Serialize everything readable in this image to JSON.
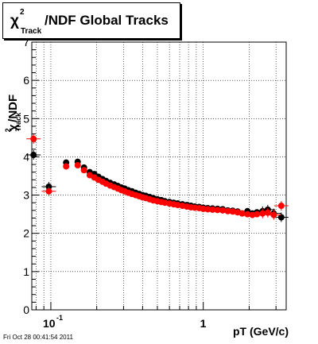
{
  "title": {
    "symbol": "χ",
    "superscript": "2",
    "subscript": "Track",
    "text": "/NDF  Global Tracks"
  },
  "footer": "Fri Oct 28 00:41:54 2011",
  "chart_data": {
    "type": "scatter",
    "title": "χ²Track/NDF  Global Tracks",
    "xlabel": "pT (GeV/c)",
    "ylabel": {
      "symbol": "χ",
      "superscript": "2",
      "subscript": "Track",
      "text": "/NDF"
    },
    "xscale": "log",
    "xlim": [
      0.075,
      3.5
    ],
    "ylim": [
      0,
      7
    ],
    "grid": true,
    "y_ticks": [
      "0",
      "1",
      "2",
      "3",
      "4",
      "5",
      "6",
      "7"
    ],
    "x_ticks": [
      {
        "value": 0.1,
        "base": "10",
        "exp": "-1"
      },
      {
        "value": 1,
        "base": "1",
        "exp": ""
      }
    ],
    "series": [
      {
        "color": "#000000",
        "points": [
          [
            0.077,
            4.05
          ],
          [
            0.097,
            3.22
          ],
          [
            0.126,
            3.85
          ],
          [
            0.15,
            3.87
          ],
          [
            0.165,
            3.72
          ],
          [
            0.18,
            3.6
          ],
          [
            0.193,
            3.55
          ],
          [
            0.205,
            3.48
          ],
          [
            0.218,
            3.42
          ],
          [
            0.23,
            3.37
          ],
          [
            0.245,
            3.32
          ],
          [
            0.26,
            3.28
          ],
          [
            0.275,
            3.24
          ],
          [
            0.29,
            3.2
          ],
          [
            0.305,
            3.17
          ],
          [
            0.322,
            3.13
          ],
          [
            0.34,
            3.1
          ],
          [
            0.36,
            3.06
          ],
          [
            0.38,
            3.03
          ],
          [
            0.4,
            3.0
          ],
          [
            0.42,
            2.98
          ],
          [
            0.445,
            2.95
          ],
          [
            0.47,
            2.92
          ],
          [
            0.5,
            2.89
          ],
          [
            0.53,
            2.87
          ],
          [
            0.56,
            2.84
          ],
          [
            0.6,
            2.82
          ],
          [
            0.64,
            2.8
          ],
          [
            0.68,
            2.78
          ],
          [
            0.73,
            2.76
          ],
          [
            0.78,
            2.74
          ],
          [
            0.83,
            2.72
          ],
          [
            0.88,
            2.7
          ],
          [
            0.94,
            2.69
          ],
          [
            1.0,
            2.67
          ],
          [
            1.07,
            2.66
          ],
          [
            1.15,
            2.65
          ],
          [
            1.24,
            2.64
          ],
          [
            1.34,
            2.63
          ],
          [
            1.45,
            2.6
          ],
          [
            1.56,
            2.59
          ],
          [
            1.68,
            2.57
          ],
          [
            1.8,
            2.52
          ],
          [
            1.95,
            2.58
          ],
          [
            2.1,
            2.52
          ],
          [
            2.25,
            2.55
          ],
          [
            2.45,
            2.58
          ],
          [
            2.65,
            2.62
          ],
          [
            2.9,
            2.52
          ],
          [
            3.25,
            2.42
          ]
        ]
      },
      {
        "color": "#ff0000",
        "points": [
          [
            0.077,
            4.47
          ],
          [
            0.097,
            3.1
          ],
          [
            0.126,
            3.75
          ],
          [
            0.15,
            3.78
          ],
          [
            0.165,
            3.65
          ],
          [
            0.18,
            3.52
          ],
          [
            0.193,
            3.46
          ],
          [
            0.205,
            3.4
          ],
          [
            0.218,
            3.35
          ],
          [
            0.23,
            3.3
          ],
          [
            0.245,
            3.25
          ],
          [
            0.26,
            3.21
          ],
          [
            0.275,
            3.17
          ],
          [
            0.29,
            3.13
          ],
          [
            0.305,
            3.1
          ],
          [
            0.322,
            3.06
          ],
          [
            0.34,
            3.03
          ],
          [
            0.36,
            3.0
          ],
          [
            0.38,
            2.97
          ],
          [
            0.4,
            2.94
          ],
          [
            0.42,
            2.92
          ],
          [
            0.445,
            2.89
          ],
          [
            0.47,
            2.86
          ],
          [
            0.5,
            2.84
          ],
          [
            0.53,
            2.82
          ],
          [
            0.56,
            2.8
          ],
          [
            0.6,
            2.78
          ],
          [
            0.64,
            2.76
          ],
          [
            0.68,
            2.74
          ],
          [
            0.73,
            2.72
          ],
          [
            0.78,
            2.7
          ],
          [
            0.83,
            2.68
          ],
          [
            0.88,
            2.67
          ],
          [
            0.94,
            2.66
          ],
          [
            1.0,
            2.64
          ],
          [
            1.07,
            2.63
          ],
          [
            1.15,
            2.62
          ],
          [
            1.24,
            2.61
          ],
          [
            1.34,
            2.6
          ],
          [
            1.45,
            2.58
          ],
          [
            1.56,
            2.57
          ],
          [
            1.68,
            2.55
          ],
          [
            1.8,
            2.52
          ],
          [
            1.95,
            2.5
          ],
          [
            2.1,
            2.48
          ],
          [
            2.25,
            2.5
          ],
          [
            2.45,
            2.52
          ],
          [
            2.65,
            2.54
          ],
          [
            2.9,
            2.48
          ],
          [
            3.25,
            2.72
          ]
        ]
      }
    ]
  }
}
